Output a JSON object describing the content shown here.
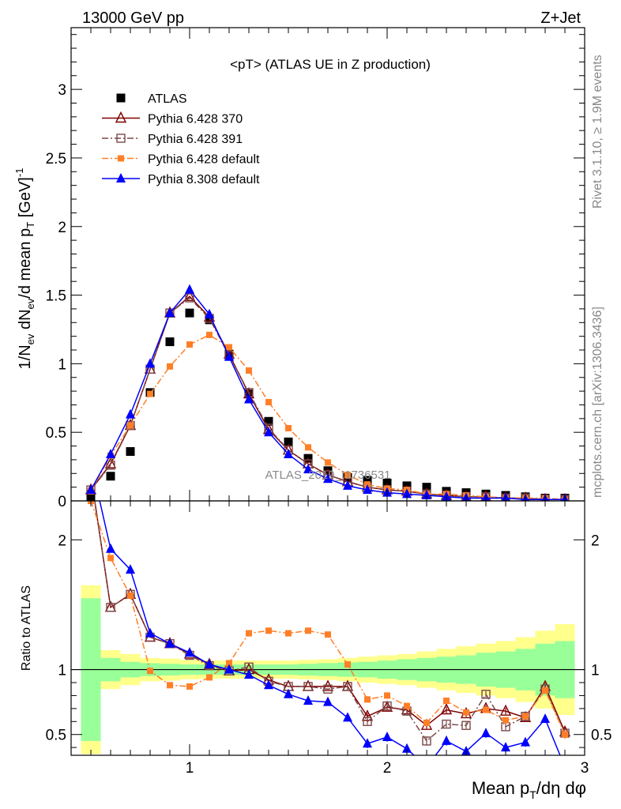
{
  "header": {
    "left": "13000 GeV pp",
    "right": "Z+Jet"
  },
  "plot_title": "<pT> (ATLAS UE in Z production)",
  "side_labels": {
    "rivet": "Rivet 3.1.10, ≥ 1.9M events",
    "source": "mcplots.cern.ch [arXiv:1306.3436]"
  },
  "watermark": "ATLAS_2019_I1736531",
  "chart_data": [
    {
      "type": "line",
      "panel": "main",
      "ylabel": "1/N_ev dN_ev/d mean p_T [GeV]^-1",
      "ylim": [
        0,
        3.45
      ],
      "xlim": [
        0.4,
        3.0
      ],
      "yticks": [
        "0",
        "0.5",
        "1",
        "1.5",
        "2",
        "2.5",
        "3"
      ],
      "x": [
        0.5,
        0.6,
        0.7,
        0.8,
        0.9,
        1.0,
        1.1,
        1.2,
        1.3,
        1.4,
        1.5,
        1.6,
        1.7,
        1.8,
        1.9,
        2.0,
        2.1,
        2.2,
        2.3,
        2.4,
        2.5,
        2.6,
        2.7,
        2.8,
        2.9
      ],
      "legend": [
        "ATLAS",
        "Pythia 6.428 370",
        "Pythia 6.428 391",
        "Pythia 6.428 default",
        "Pythia 8.308 default"
      ],
      "series": [
        {
          "name": "ATLAS",
          "color": "#000000",
          "marker": "square",
          "values": [
            0.03,
            0.18,
            0.36,
            0.79,
            1.16,
            1.37,
            1.32,
            1.07,
            0.78,
            0.58,
            0.43,
            0.31,
            0.22,
            0.17,
            0.15,
            0.13,
            0.11,
            0.1,
            0.07,
            0.06,
            0.05,
            0.04,
            0.03,
            0.02,
            0.02
          ]
        },
        {
          "name": "Pythia 6.428 370",
          "color": "#800000",
          "marker": "triangle-open",
          "values": [
            0.08,
            0.27,
            0.55,
            0.96,
            1.37,
            1.49,
            1.34,
            1.07,
            0.78,
            0.52,
            0.37,
            0.27,
            0.19,
            0.14,
            0.1,
            0.08,
            0.07,
            0.05,
            0.04,
            0.03,
            0.03,
            0.02,
            0.02,
            0.01,
            0.01
          ]
        },
        {
          "name": "Pythia 6.428 391",
          "color": "#7a4a4a",
          "marker": "square-open",
          "values": [
            0.08,
            0.26,
            0.55,
            0.96,
            1.37,
            1.48,
            1.33,
            1.06,
            0.79,
            0.53,
            0.37,
            0.27,
            0.19,
            0.14,
            0.1,
            0.08,
            0.07,
            0.05,
            0.04,
            0.03,
            0.03,
            0.02,
            0.02,
            0.01,
            0.01
          ]
        },
        {
          "name": "Pythia 6.428 default",
          "color": "#ff7f27",
          "marker": "square-small",
          "values": [
            0.07,
            0.33,
            0.55,
            0.78,
            0.98,
            1.14,
            1.21,
            1.12,
            0.95,
            0.72,
            0.53,
            0.39,
            0.28,
            0.19,
            0.12,
            0.09,
            0.08,
            0.05,
            0.05,
            0.04,
            0.03,
            0.02,
            0.02,
            0.02,
            0.01
          ]
        },
        {
          "name": "Pythia 8.308 default",
          "color": "#0000ff",
          "marker": "triangle",
          "values": [
            0.08,
            0.34,
            0.63,
            1.0,
            1.37,
            1.54,
            1.36,
            1.05,
            0.74,
            0.5,
            0.34,
            0.23,
            0.16,
            0.11,
            0.08,
            0.06,
            0.05,
            0.04,
            0.03,
            0.02,
            0.02,
            0.02,
            0.01,
            0.01,
            0.01
          ]
        }
      ]
    },
    {
      "type": "line",
      "panel": "ratio",
      "ylabel": "Ratio to ATLAS",
      "xlabel": "Mean p_T/dη dφ",
      "ylim": [
        0.34,
        2.3
      ],
      "xlim": [
        0.4,
        3.0
      ],
      "yticks": [
        "0.5",
        "1",
        "2"
      ],
      "xticks": [
        "1",
        "2",
        "3"
      ],
      "x": [
        0.5,
        0.6,
        0.7,
        0.8,
        0.9,
        1.0,
        1.1,
        1.2,
        1.3,
        1.4,
        1.5,
        1.6,
        1.7,
        1.8,
        1.9,
        2.0,
        2.1,
        2.2,
        2.3,
        2.4,
        2.5,
        2.6,
        2.7,
        2.8,
        2.9
      ],
      "bands": {
        "green_half": [
          0.55,
          0.09,
          0.06,
          0.05,
          0.045,
          0.04,
          0.04,
          0.04,
          0.04,
          0.04,
          0.04,
          0.045,
          0.05,
          0.055,
          0.06,
          0.07,
          0.08,
          0.09,
          0.1,
          0.11,
          0.13,
          0.14,
          0.16,
          0.2,
          0.22
        ],
        "yellow_half": [
          0.65,
          0.15,
          0.12,
          0.09,
          0.085,
          0.075,
          0.07,
          0.07,
          0.07,
          0.07,
          0.07,
          0.075,
          0.08,
          0.09,
          0.1,
          0.11,
          0.12,
          0.14,
          0.16,
          0.18,
          0.2,
          0.22,
          0.25,
          0.3,
          0.35
        ]
      },
      "series": [
        {
          "name": "Pythia 6.428 370",
          "color": "#800000",
          "values": [
            2.5,
            1.48,
            1.58,
            1.25,
            1.2,
            1.12,
            1.04,
            0.99,
            1.0,
            0.92,
            0.87,
            0.87,
            0.87,
            0.87,
            0.64,
            0.71,
            0.69,
            0.57,
            0.69,
            0.66,
            0.7,
            0.68,
            0.63,
            0.87,
            0.52
          ]
        },
        {
          "name": "Pythia 6.428 391",
          "color": "#7a4a4a",
          "values": [
            2.5,
            1.48,
            1.58,
            1.25,
            1.2,
            1.11,
            1.03,
            0.99,
            1.02,
            0.91,
            0.87,
            0.87,
            0.85,
            0.87,
            0.6,
            0.72,
            0.68,
            0.45,
            0.58,
            0.57,
            0.81,
            0.56,
            0.64,
            0.85,
            0.51
          ]
        },
        {
          "name": "Pythia 6.428 default",
          "color": "#ff7f27",
          "values": [
            2.3,
            1.86,
            1.57,
            0.99,
            0.88,
            0.87,
            0.94,
            1.05,
            1.28,
            1.3,
            1.28,
            1.3,
            1.27,
            1.04,
            0.77,
            0.8,
            0.72,
            0.59,
            0.76,
            0.67,
            0.69,
            0.61,
            0.64,
            0.84,
            0.5
          ]
        },
        {
          "name": "Pythia 8.308 default",
          "color": "#0000ff",
          "values": [
            2.6,
            1.93,
            1.77,
            1.28,
            1.2,
            1.13,
            1.04,
            1.0,
            0.96,
            0.88,
            0.81,
            0.76,
            0.75,
            0.63,
            0.43,
            0.48,
            0.39,
            0.25,
            0.45,
            0.37,
            0.51,
            0.4,
            0.44,
            0.62,
            0.25
          ]
        }
      ]
    }
  ]
}
